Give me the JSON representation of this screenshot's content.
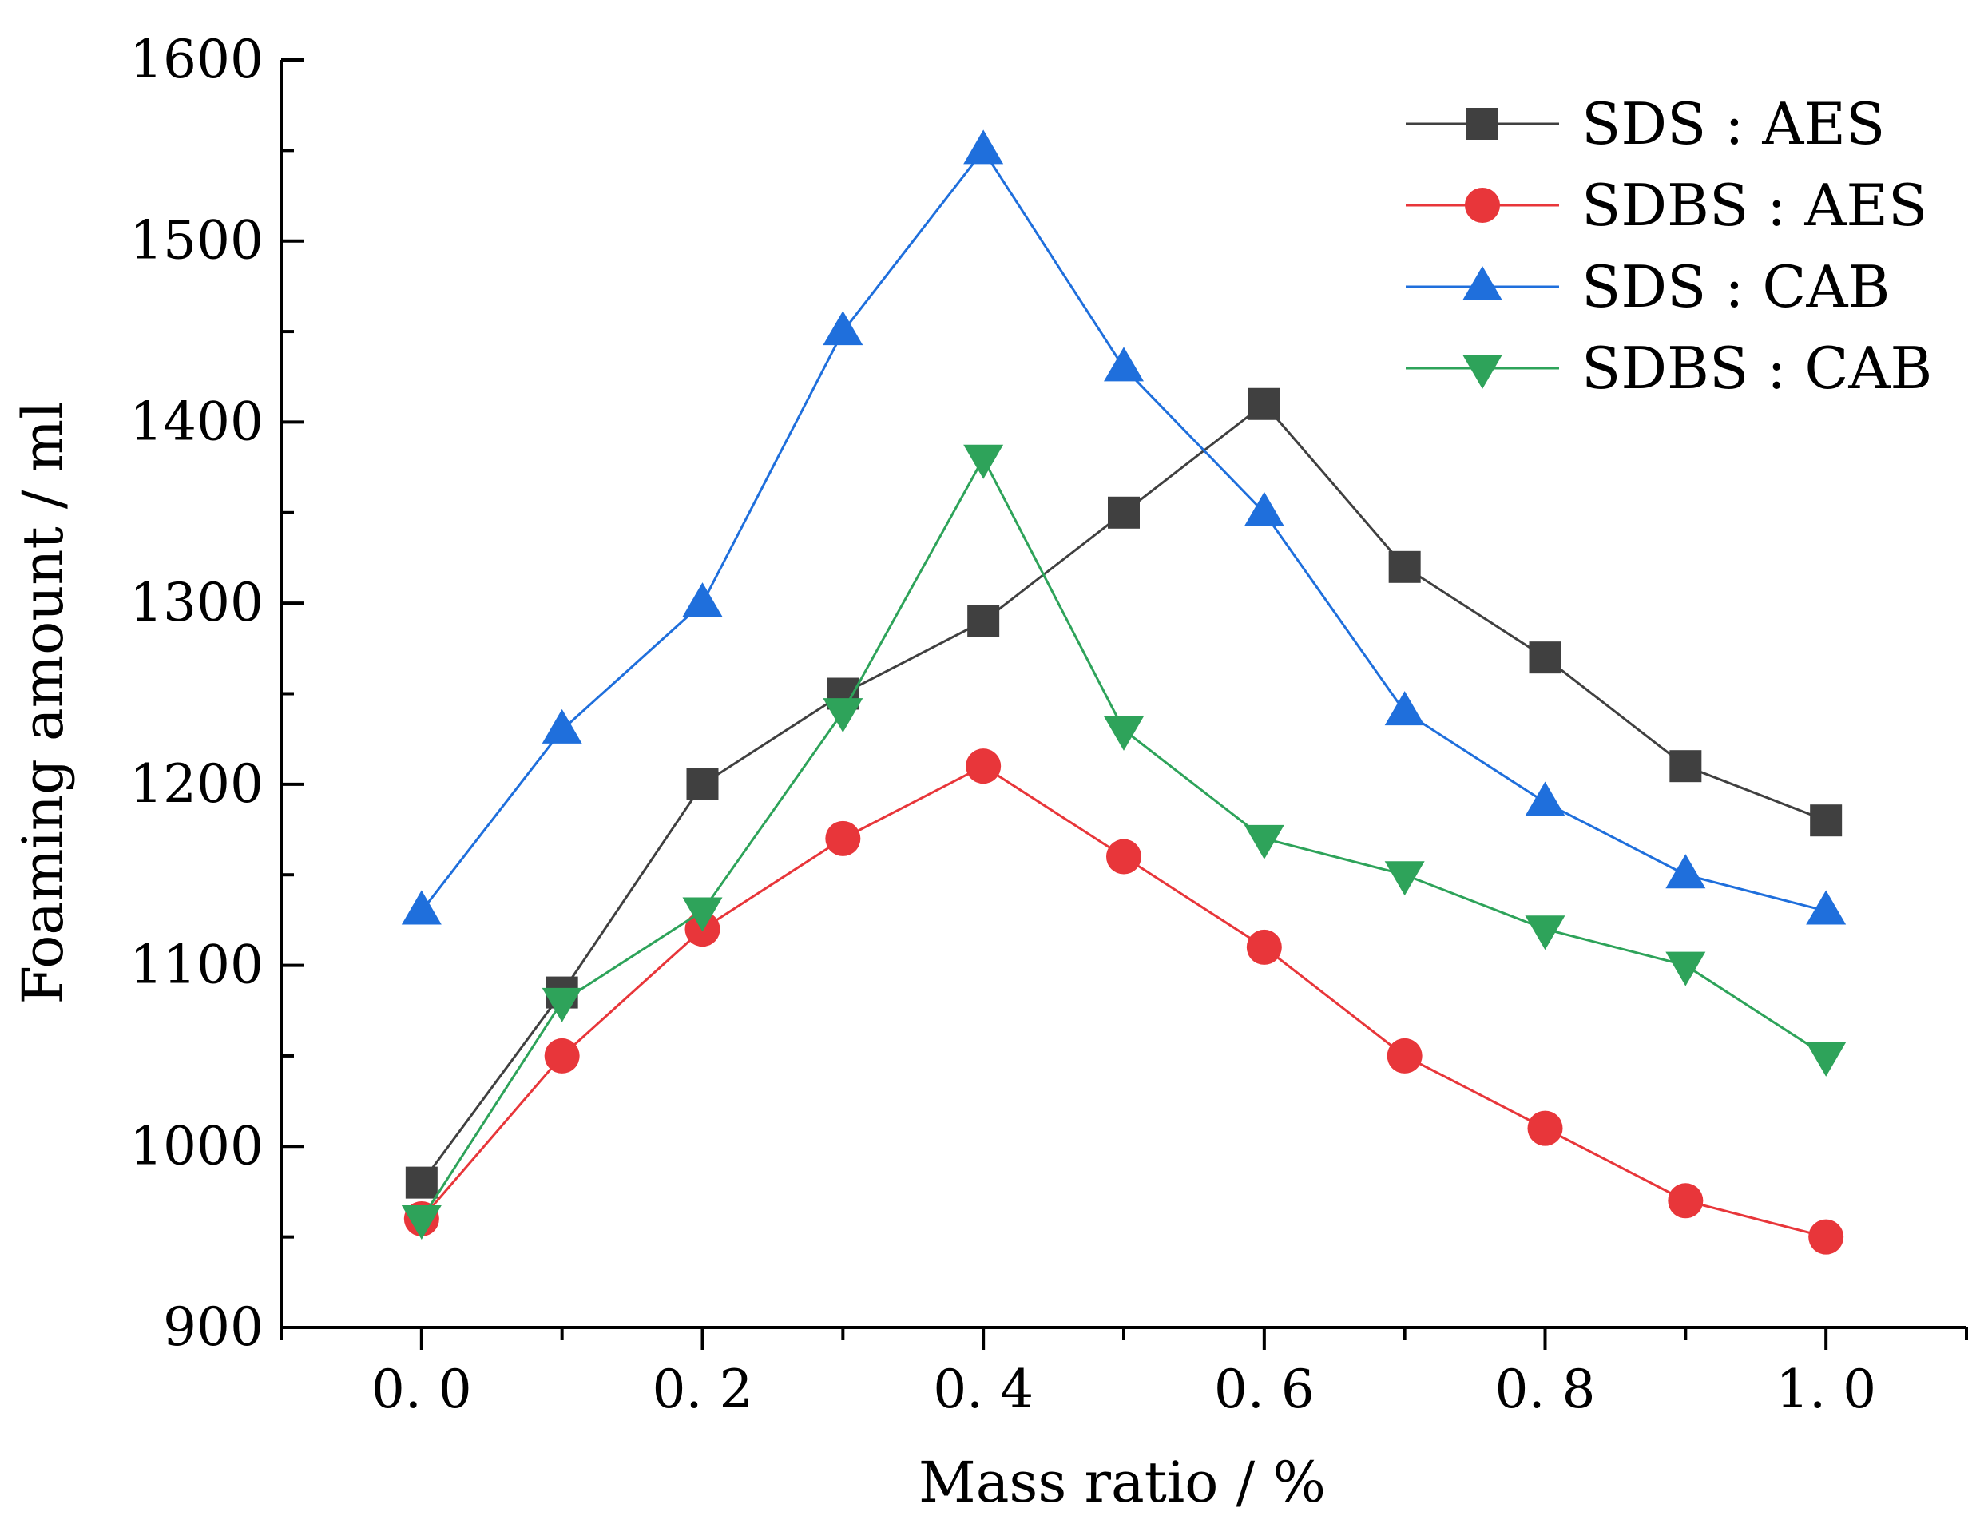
{
  "chart_data": {
    "type": "line",
    "title": "",
    "xlabel": "Mass ratio / %",
    "ylabel": "Foaming amount / ml",
    "xlim": [
      -0.1,
      1.1
    ],
    "ylim": [
      900,
      1600
    ],
    "x_ticks": [
      0.0,
      0.2,
      0.4,
      0.6,
      0.8,
      1.0
    ],
    "x_tick_labels": [
      "0. 0",
      "0. 2",
      "0. 4",
      "0. 6",
      "0. 8",
      "1. 0"
    ],
    "y_ticks": [
      900,
      1000,
      1100,
      1200,
      1300,
      1400,
      1500,
      1600
    ],
    "y_tick_labels": [
      "900",
      "1000",
      "1100",
      "1200",
      "1300",
      "1400",
      "1500",
      "1600"
    ],
    "grid": false,
    "legend_position": "top-right",
    "x": [
      0.0,
      0.1,
      0.2,
      0.3,
      0.4,
      0.5,
      0.6,
      0.7,
      0.8,
      0.9,
      1.0
    ],
    "series": [
      {
        "name": "SDS : AES",
        "color": "#404040",
        "marker": "square",
        "values": [
          980,
          1085,
          1200,
          1250,
          1290,
          1350,
          1410,
          1320,
          1270,
          1210,
          1180
        ]
      },
      {
        "name": "SDBS : AES",
        "color": "#e8363a",
        "marker": "circle",
        "values": [
          960,
          1050,
          1120,
          1170,
          1210,
          1160,
          1110,
          1050,
          1010,
          970,
          950
        ]
      },
      {
        "name": "SDS : CAB",
        "color": "#1f6fdc",
        "marker": "triangle-up",
        "values": [
          1130,
          1230,
          1300,
          1450,
          1550,
          1430,
          1350,
          1240,
          1190,
          1150,
          1130
        ]
      },
      {
        "name": "SDBS : CAB",
        "color": "#2ea35a",
        "marker": "triangle-down",
        "values": [
          960,
          1080,
          1130,
          1240,
          1380,
          1230,
          1170,
          1150,
          1120,
          1100,
          1050
        ]
      }
    ]
  }
}
